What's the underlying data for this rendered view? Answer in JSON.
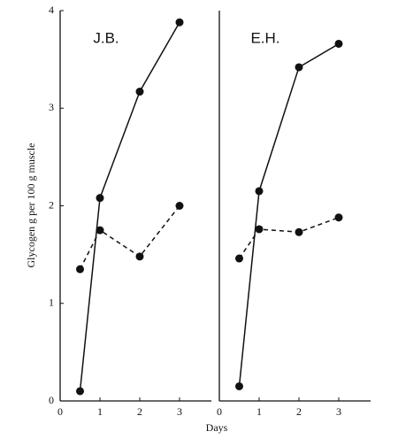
{
  "chart_data": [
    {
      "type": "line",
      "title": "J.B.",
      "xlabel": "Days",
      "ylabel": "Glycogen g per 100 g muscle",
      "x": [
        0.5,
        1,
        2,
        3
      ],
      "xlim": [
        0,
        3.8
      ],
      "xticks": [
        0,
        1,
        2,
        3
      ],
      "ylim": [
        0,
        4
      ],
      "yticks": [
        0,
        1,
        2,
        3,
        4
      ],
      "series": [
        {
          "color": "#111111",
          "dash": false,
          "values": [
            0.1,
            2.08,
            3.17,
            3.88
          ]
        },
        {
          "color": "#111111",
          "dash": true,
          "values": [
            1.35,
            1.75,
            1.48,
            2.0
          ]
        }
      ]
    },
    {
      "type": "line",
      "title": "E.H.",
      "x": [
        0.5,
        1,
        2,
        3
      ],
      "xlim": [
        0,
        3.8
      ],
      "xticks": [
        0,
        1,
        2,
        3
      ],
      "ylim": [
        0,
        4
      ],
      "series": [
        {
          "color": "#111111",
          "dash": false,
          "values": [
            0.15,
            2.15,
            3.42,
            3.66
          ]
        },
        {
          "color": "#111111",
          "dash": true,
          "values": [
            1.46,
            1.76,
            1.73,
            1.88
          ]
        }
      ]
    }
  ]
}
